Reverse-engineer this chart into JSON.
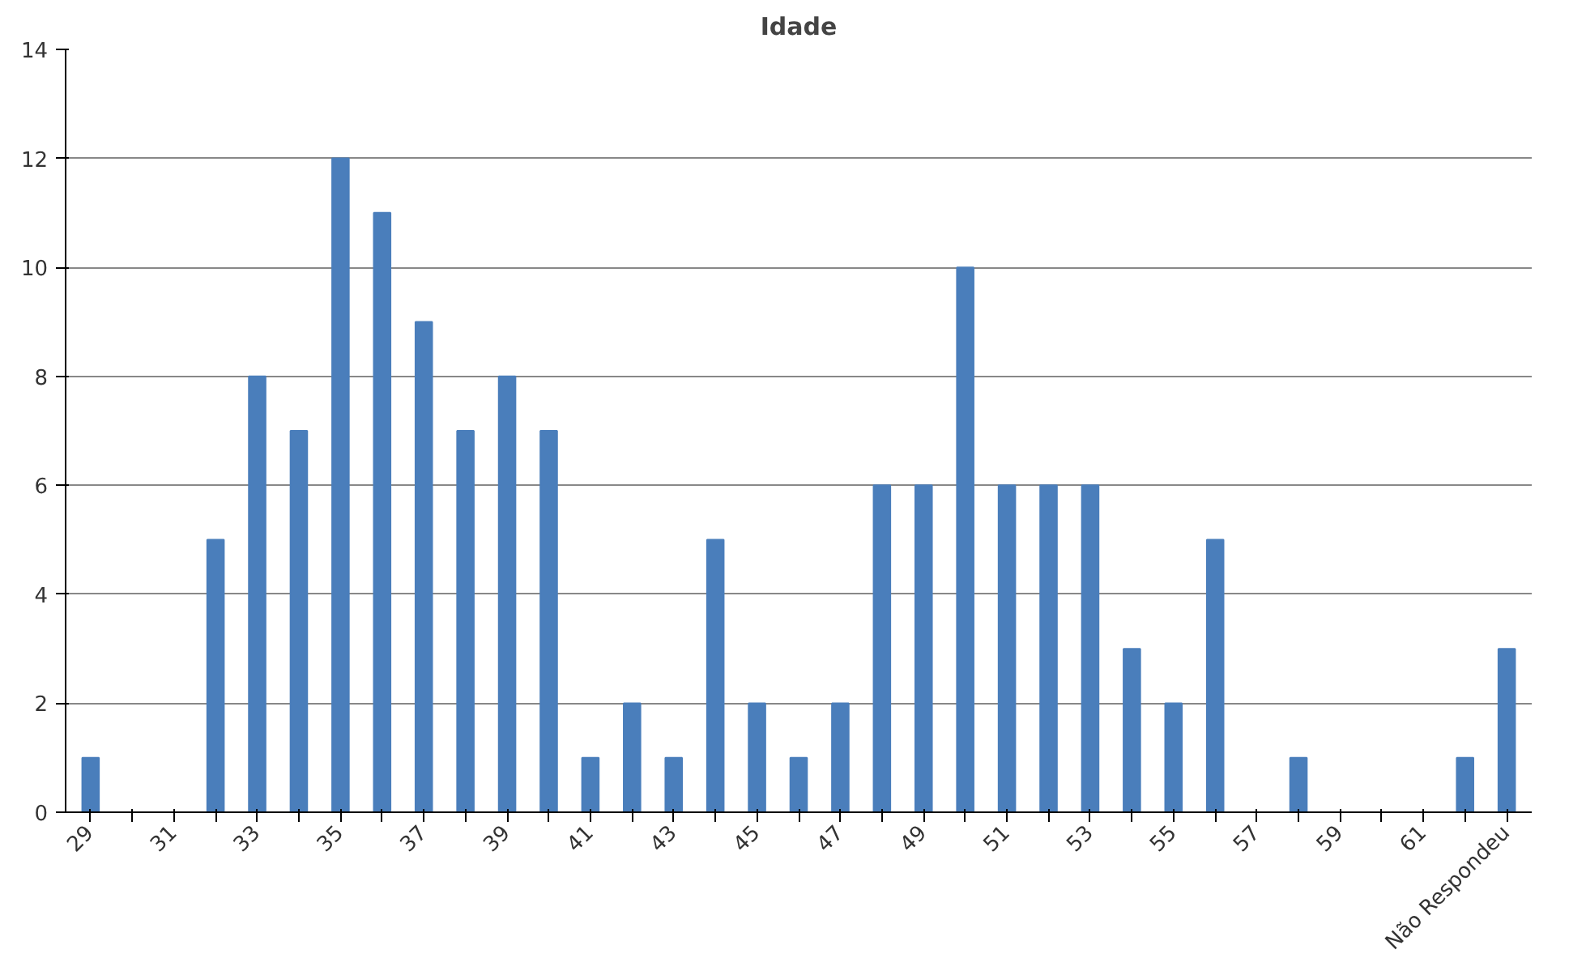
{
  "chart_data": {
    "type": "bar",
    "title": "Idade",
    "categories": [
      "29",
      null,
      "31",
      null,
      "33",
      null,
      "35",
      null,
      "37",
      null,
      "39",
      null,
      "41",
      null,
      "43",
      null,
      "45",
      null,
      "47",
      null,
      "49",
      null,
      "51",
      null,
      "53",
      null,
      "55",
      null,
      "57",
      null,
      "59",
      null,
      "61",
      null,
      "Não Respondeu"
    ],
    "values": [
      1,
      0,
      0,
      5,
      8,
      7,
      12,
      11,
      9,
      7,
      8,
      7,
      1,
      2,
      1,
      5,
      2,
      1,
      2,
      6,
      6,
      10,
      6,
      6,
      6,
      3,
      2,
      5,
      0,
      1,
      0,
      0,
      0,
      1,
      3
    ],
    "color": "#4a7ebb",
    "ylim": [
      0,
      14
    ],
    "yticks": [
      0,
      2,
      4,
      6,
      8,
      10,
      12,
      14
    ],
    "grid": "y"
  }
}
